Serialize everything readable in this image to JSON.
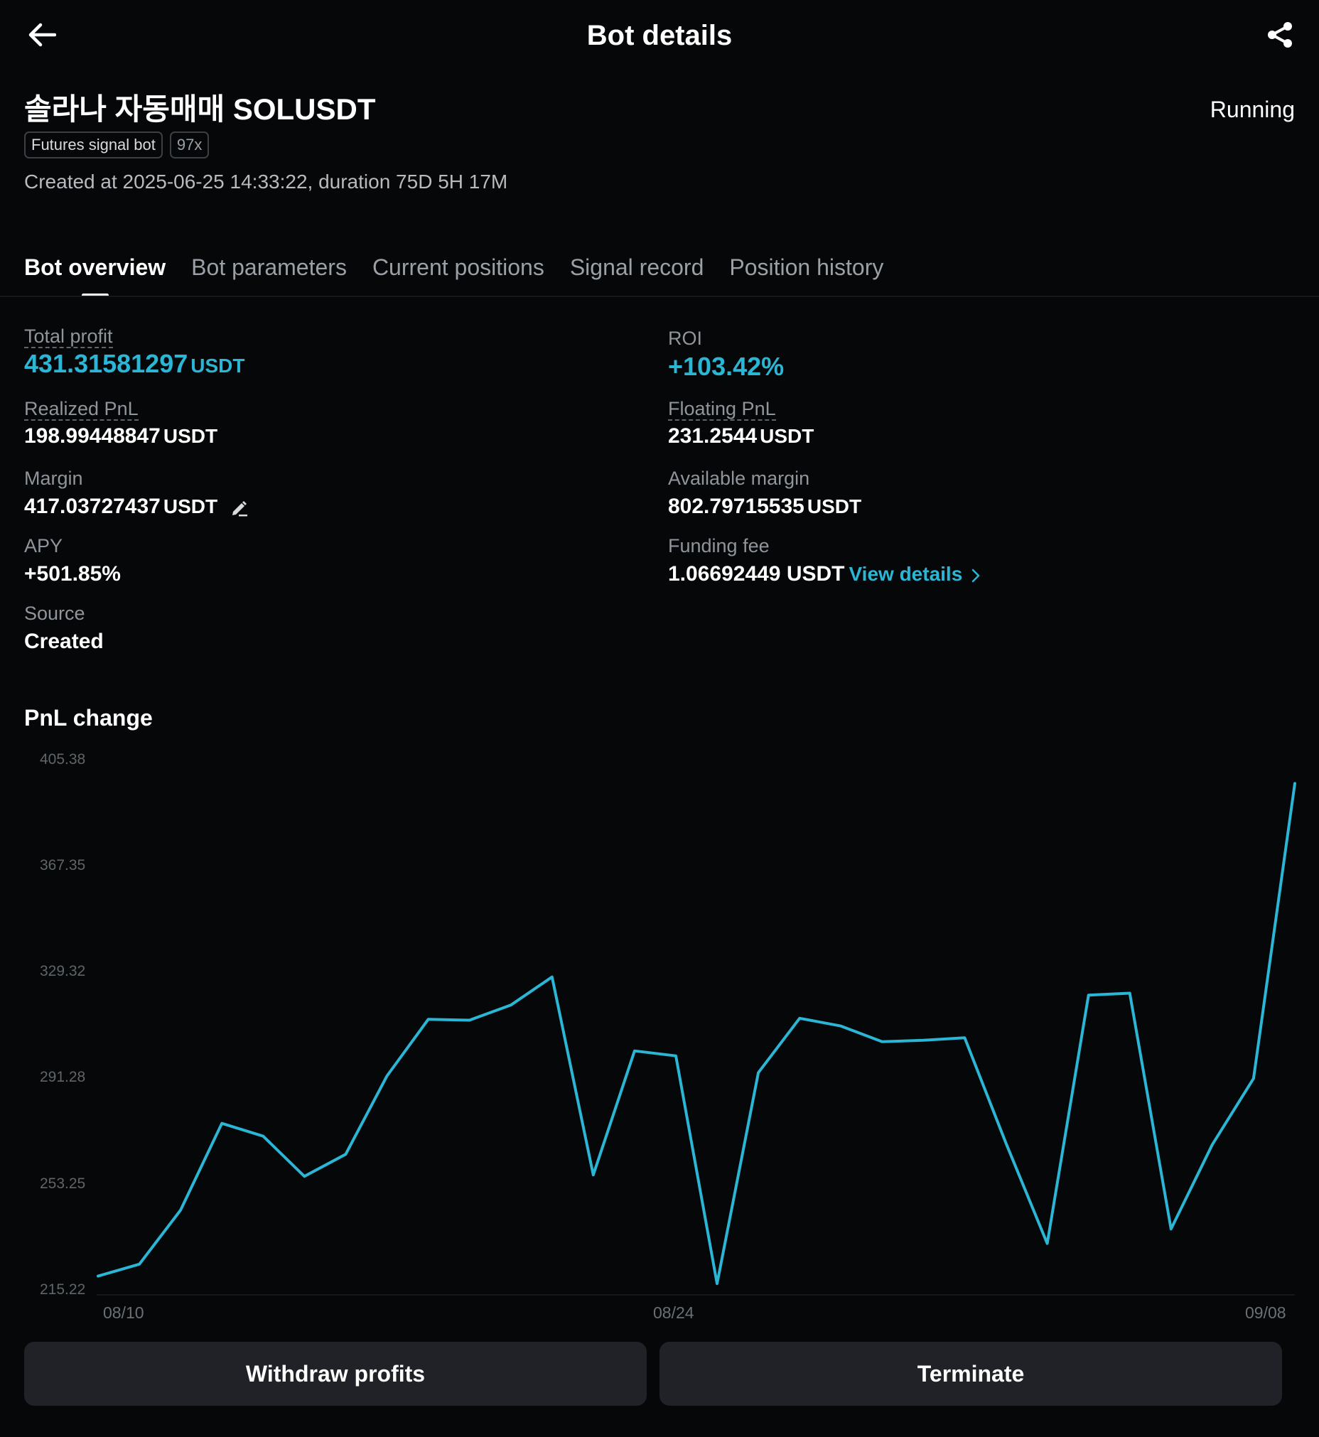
{
  "header": {
    "title": "Bot details",
    "back_icon": "arrow-left-icon",
    "share_icon": "share-icon"
  },
  "bot": {
    "name": "솔라나 자동매매 SOLUSDT",
    "status": "Running",
    "tags": [
      "Futures signal bot",
      "97x"
    ],
    "created": "Created at 2025-06-25 14:33:22, duration 75D 5H 17M"
  },
  "tabs": [
    {
      "label": "Bot overview",
      "active": true
    },
    {
      "label": "Bot parameters",
      "active": false
    },
    {
      "label": "Current positions",
      "active": false
    },
    {
      "label": "Signal record",
      "active": false
    },
    {
      "label": "Position history",
      "active": false
    }
  ],
  "stats": {
    "total_profit": {
      "label": "Total profit",
      "value": "431.31581297",
      "unit": "USDT"
    },
    "roi": {
      "label": "ROI",
      "value": "+103.42%"
    },
    "realized_pnl": {
      "label": "Realized PnL",
      "value": "198.99448847",
      "unit": "USDT"
    },
    "floating_pnl": {
      "label": "Floating PnL",
      "value": "231.2544",
      "unit": "USDT"
    },
    "margin": {
      "label": "Margin",
      "value": "417.03727437",
      "unit": "USDT"
    },
    "available_margin": {
      "label": "Available margin",
      "value": "802.79715535",
      "unit": "USDT"
    },
    "apy": {
      "label": "APY",
      "value": "+501.85%"
    },
    "funding_fee": {
      "label": "Funding fee",
      "value": "1.06692449 USDT",
      "link": "View details"
    },
    "source": {
      "label": "Source",
      "value": "Created"
    }
  },
  "colors": {
    "accent": "#2ab6d4",
    "background": "#050708",
    "button": "#202227"
  },
  "chart_section": {
    "title": "PnL change"
  },
  "chart_data": {
    "type": "line",
    "title": "",
    "xlabel": "",
    "ylabel": "",
    "y_ticks": [
      "405.38",
      "367.35",
      "329.32",
      "291.28",
      "253.25",
      "215.22"
    ],
    "x_ticks": [
      "08/10",
      "08/24",
      "09/08"
    ],
    "ylim": [
      215.22,
      405.38
    ],
    "series": [
      {
        "values": [
          219.9,
          224.2,
          243.6,
          274.7,
          270.1,
          255.7,
          263.6,
          291.7,
          312.0,
          311.7,
          317.1,
          327.2,
          256.2,
          300.7,
          298.9,
          217.2,
          292.9,
          312.4,
          309.6,
          304.0,
          304.5,
          305.4,
          267.6,
          231.6,
          320.7,
          321.4,
          236.8,
          267.1,
          290.8,
          396.6
        ]
      }
    ],
    "grid": false,
    "legend": "none"
  },
  "actions": {
    "withdraw": "Withdraw profits",
    "terminate": "Terminate"
  }
}
